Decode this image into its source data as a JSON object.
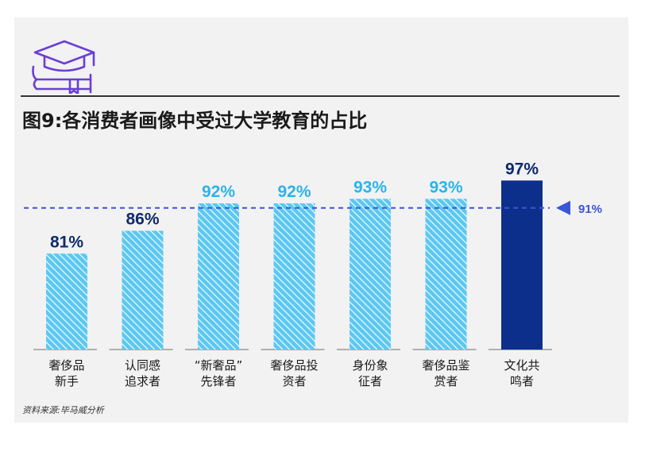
{
  "title": "图9:各消费者画像中受过大学教育的占比",
  "source": "资料来源:毕马威分析",
  "logo_icon": "graduation-cap-book-icon",
  "colors": {
    "bar_fill": "#5cc8f2",
    "bar_hatch": "#ffffff",
    "bar_highlight": "#0d2f8c",
    "label_light": "#2ab4ec",
    "label_dark": "#0f2a6b",
    "average_line": "#3a55d6",
    "axis": "#999999",
    "logo": "#6a3fd6"
  },
  "chart_data": {
    "type": "bar",
    "title": "图9:各消费者画像中受过大学教育的占比",
    "categories": [
      [
        "奢侈品",
        "新手"
      ],
      [
        "认同感",
        "追求者"
      ],
      [
        "“新奢品”",
        "先锋者"
      ],
      [
        "奢侈品投",
        "资者"
      ],
      [
        "身份象",
        "征者"
      ],
      [
        "奢侈品鉴",
        "赏者"
      ],
      [
        "文化共",
        "鸣者"
      ]
    ],
    "values": [
      81,
      86,
      92,
      92,
      93,
      93,
      97
    ],
    "value_labels": [
      "81%",
      "86%",
      "92%",
      "92%",
      "93%",
      "93%",
      "97%"
    ],
    "highlight_index": 6,
    "reference_line": {
      "value": 91,
      "label": "91%"
    },
    "ylim": [
      60,
      100
    ],
    "xlabel": "",
    "ylabel": "",
    "grid": false,
    "legend": "none"
  }
}
